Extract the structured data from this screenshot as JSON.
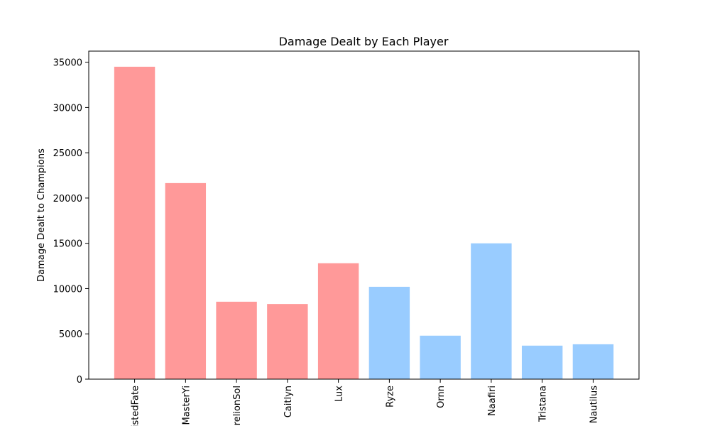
{
  "chart_data": {
    "type": "bar",
    "title": "Damage Dealt by Each Player",
    "xlabel": "",
    "ylabel": "Damage Dealt to Champions",
    "categories": [
      "TwistedFate",
      "MasterYi",
      "AurelionSol",
      "Caitlyn",
      "Lux",
      "Ryze",
      "Ornn",
      "Naafiri",
      "Tristana",
      "Nautilus"
    ],
    "values": [
      34500,
      21650,
      8550,
      8300,
      12800,
      10200,
      4800,
      15000,
      3700,
      3850
    ],
    "bar_colors": [
      "#ff9999",
      "#ff9999",
      "#ff9999",
      "#ff9999",
      "#ff9999",
      "#99ccff",
      "#99ccff",
      "#99ccff",
      "#99ccff",
      "#99ccff"
    ],
    "yticks": [
      0,
      5000,
      10000,
      15000,
      20000,
      25000,
      30000,
      35000
    ],
    "ylim": [
      0,
      36225
    ],
    "grid": false,
    "legend": "none"
  }
}
